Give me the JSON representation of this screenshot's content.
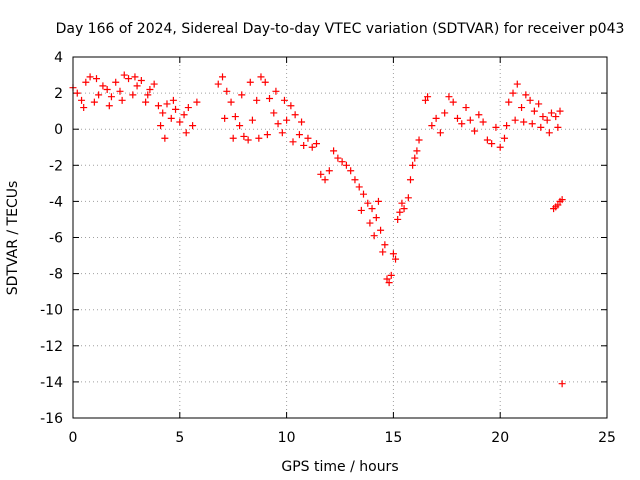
{
  "chart_data": {
    "type": "scatter",
    "title": "Day 166 of 2024, Sidereal Day-to-day VTEC variation (SDTVAR) for receiver p043",
    "xlabel": "GPS time / hours",
    "ylabel": "SDTVAR / TECUs",
    "xlim": [
      0,
      25
    ],
    "ylim": [
      -16,
      4
    ],
    "xticks": [
      0,
      5,
      10,
      15,
      20,
      25
    ],
    "yticks": [
      4,
      2,
      0,
      -2,
      -4,
      -6,
      -8,
      -10,
      -12,
      -14,
      -16
    ],
    "grid": true,
    "marker": "+",
    "marker_color": "#ff0000",
    "series": [
      {
        "name": "SDTVAR p043",
        "points": [
          [
            0.0,
            2.3
          ],
          [
            0.2,
            2.0
          ],
          [
            0.4,
            1.6
          ],
          [
            0.6,
            2.6
          ],
          [
            0.8,
            2.9
          ],
          [
            1.0,
            1.5
          ],
          [
            1.2,
            1.9
          ],
          [
            1.4,
            2.4
          ],
          [
            1.6,
            2.2
          ],
          [
            1.8,
            1.8
          ],
          [
            2.0,
            2.6
          ],
          [
            2.2,
            2.1
          ],
          [
            2.4,
            3.0
          ],
          [
            2.6,
            2.8
          ],
          [
            2.8,
            1.9
          ],
          [
            3.0,
            2.4
          ],
          [
            3.2,
            2.7
          ],
          [
            3.4,
            1.5
          ],
          [
            3.6,
            2.2
          ],
          [
            3.8,
            2.5
          ],
          [
            4.0,
            1.3
          ],
          [
            4.2,
            0.9
          ],
          [
            4.4,
            1.4
          ],
          [
            4.6,
            0.6
          ],
          [
            4.8,
            1.1
          ],
          [
            5.0,
            0.4
          ],
          [
            5.2,
            0.8
          ],
          [
            5.4,
            1.2
          ],
          [
            5.6,
            0.2
          ],
          [
            5.8,
            1.5
          ],
          [
            0.5,
            1.2
          ],
          [
            1.1,
            2.8
          ],
          [
            1.7,
            1.3
          ],
          [
            2.3,
            1.6
          ],
          [
            2.9,
            2.9
          ],
          [
            3.5,
            1.9
          ],
          [
            4.1,
            0.2
          ],
          [
            4.7,
            1.6
          ],
          [
            5.3,
            -0.2
          ],
          [
            4.3,
            -0.5
          ],
          [
            6.8,
            2.5
          ],
          [
            7.0,
            2.9
          ],
          [
            7.2,
            2.1
          ],
          [
            7.4,
            1.5
          ],
          [
            7.6,
            0.7
          ],
          [
            7.8,
            0.2
          ],
          [
            8.0,
            -0.4
          ],
          [
            8.2,
            -0.6
          ],
          [
            8.4,
            0.5
          ],
          [
            8.6,
            1.6
          ],
          [
            8.8,
            2.9
          ],
          [
            9.0,
            2.6
          ],
          [
            9.2,
            1.7
          ],
          [
            9.4,
            0.9
          ],
          [
            9.6,
            0.3
          ],
          [
            9.8,
            -0.2
          ],
          [
            10.0,
            0.5
          ],
          [
            10.2,
            1.3
          ],
          [
            10.4,
            0.8
          ],
          [
            10.6,
            -0.3
          ],
          [
            7.1,
            0.6
          ],
          [
            7.5,
            -0.5
          ],
          [
            7.9,
            1.9
          ],
          [
            8.3,
            2.6
          ],
          [
            8.7,
            -0.5
          ],
          [
            9.1,
            -0.3
          ],
          [
            9.5,
            2.1
          ],
          [
            9.9,
            1.6
          ],
          [
            10.3,
            -0.7
          ],
          [
            10.7,
            0.4
          ],
          [
            10.8,
            -0.9
          ],
          [
            11.0,
            -0.5
          ],
          [
            11.2,
            -1.0
          ],
          [
            11.4,
            -0.8
          ],
          [
            11.6,
            -2.5
          ],
          [
            11.8,
            -2.8
          ],
          [
            12.0,
            -2.3
          ],
          [
            12.2,
            -1.2
          ],
          [
            12.4,
            -1.6
          ],
          [
            12.6,
            -1.8
          ],
          [
            12.8,
            -2.0
          ],
          [
            13.0,
            -2.3
          ],
          [
            13.2,
            -2.8
          ],
          [
            13.4,
            -3.2
          ],
          [
            13.6,
            -3.6
          ],
          [
            13.8,
            -4.1
          ],
          [
            14.0,
            -4.4
          ],
          [
            14.2,
            -4.9
          ],
          [
            14.4,
            -5.6
          ],
          [
            14.6,
            -6.4
          ],
          [
            14.7,
            -8.3
          ],
          [
            14.8,
            -8.5
          ],
          [
            14.9,
            -8.1
          ],
          [
            15.0,
            -6.9
          ],
          [
            15.1,
            -7.2
          ],
          [
            15.2,
            -5.0
          ],
          [
            15.3,
            -4.6
          ],
          [
            15.4,
            -4.1
          ],
          [
            15.5,
            -4.4
          ],
          [
            15.7,
            -3.8
          ],
          [
            13.5,
            -4.5
          ],
          [
            13.9,
            -5.2
          ],
          [
            14.3,
            -4.0
          ],
          [
            14.1,
            -5.9
          ],
          [
            14.5,
            -6.8
          ],
          [
            15.8,
            -2.8
          ],
          [
            15.9,
            -2.0
          ],
          [
            16.0,
            -1.6
          ],
          [
            16.1,
            -1.2
          ],
          [
            16.2,
            -0.6
          ],
          [
            16.5,
            1.6
          ],
          [
            16.6,
            1.8
          ],
          [
            16.8,
            0.2
          ],
          [
            17.0,
            0.6
          ],
          [
            17.2,
            -0.2
          ],
          [
            17.4,
            0.9
          ],
          [
            17.6,
            1.8
          ],
          [
            17.8,
            1.5
          ],
          [
            18.0,
            0.6
          ],
          [
            18.2,
            0.3
          ],
          [
            18.4,
            1.2
          ],
          [
            18.6,
            0.5
          ],
          [
            18.8,
            -0.1
          ],
          [
            19.0,
            0.8
          ],
          [
            19.2,
            0.4
          ],
          [
            19.4,
            -0.6
          ],
          [
            19.6,
            -0.8
          ],
          [
            19.8,
            0.1
          ],
          [
            20.0,
            -1.0
          ],
          [
            20.2,
            -0.5
          ],
          [
            20.4,
            1.5
          ],
          [
            20.6,
            2.0
          ],
          [
            20.8,
            2.5
          ],
          [
            21.0,
            1.2
          ],
          [
            21.2,
            1.9
          ],
          [
            21.4,
            1.6
          ],
          [
            21.6,
            1.0
          ],
          [
            21.8,
            1.4
          ],
          [
            22.0,
            0.7
          ],
          [
            22.2,
            0.5
          ],
          [
            22.4,
            0.9
          ],
          [
            22.6,
            0.7
          ],
          [
            22.8,
            1.0
          ],
          [
            20.3,
            0.2
          ],
          [
            20.7,
            0.5
          ],
          [
            21.1,
            0.4
          ],
          [
            21.5,
            0.3
          ],
          [
            21.9,
            0.1
          ],
          [
            22.3,
            -0.2
          ],
          [
            22.7,
            0.1
          ],
          [
            22.5,
            -4.4
          ],
          [
            22.6,
            -4.3
          ],
          [
            22.7,
            -4.2
          ],
          [
            22.8,
            -4.0
          ],
          [
            22.9,
            -3.9
          ],
          [
            22.9,
            -14.1
          ]
        ]
      }
    ]
  }
}
